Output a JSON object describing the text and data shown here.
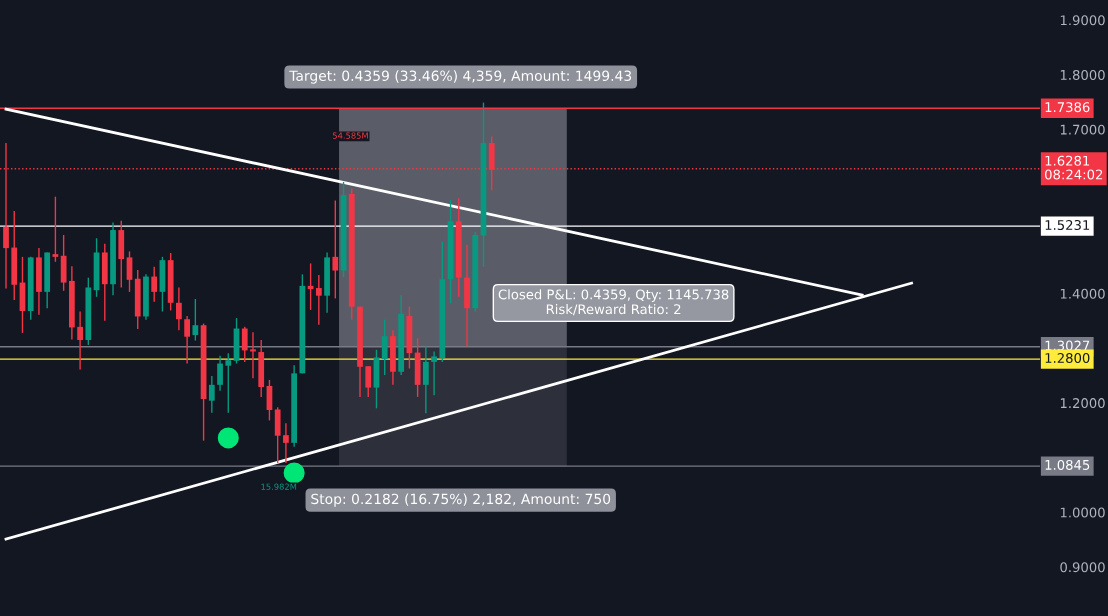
{
  "chart_data": {
    "type": "candlestick",
    "categories": [
      null,
      null,
      null,
      null,
      null,
      null,
      null,
      null,
      null,
      null,
      null,
      null,
      null,
      null,
      null,
      null,
      null,
      null,
      null,
      null,
      null,
      null,
      null,
      null,
      null,
      null,
      null,
      null,
      null,
      null,
      null,
      null,
      null,
      null,
      null,
      null,
      null,
      null,
      null,
      null,
      null,
      null,
      null,
      null,
      null,
      null,
      null,
      null,
      null,
      null,
      null,
      null,
      null,
      null,
      null,
      null,
      null,
      null,
      null,
      null,
      null,
      null,
      null,
      null,
      null,
      null,
      null,
      null,
      null,
      null,
      null,
      null,
      null,
      null,
      null,
      null,
      null,
      null,
      null,
      null,
      null,
      null,
      null,
      null,
      null,
      null,
      null,
      null,
      null,
      null,
      null,
      null,
      null,
      null,
      null,
      null,
      null,
      null,
      null,
      null,
      null,
      null,
      null,
      null,
      null,
      null,
      null,
      null,
      null,
      null,
      null,
      null,
      null,
      null,
      null,
      null,
      null,
      null,
      null,
      null,
      null,
      null,
      null,
      null,
      null,
      null
    ],
    "ohlc": [
      [
        1.522,
        1.675,
        1.409,
        1.483
      ],
      [
        1.484,
        1.551,
        1.388,
        1.416
      ],
      [
        1.42,
        1.467,
        1.328,
        1.368
      ],
      [
        1.368,
        1.467,
        1.352,
        1.466
      ],
      [
        1.466,
        1.483,
        1.361,
        1.403
      ],
      [
        1.403,
        1.475,
        1.373,
        1.475
      ],
      [
        1.472,
        1.577,
        1.458,
        1.467
      ],
      [
        1.469,
        1.507,
        1.405,
        1.42
      ],
      [
        1.423,
        1.45,
        1.316,
        1.338
      ],
      [
        1.339,
        1.367,
        1.261,
        1.315
      ],
      [
        1.315,
        1.429,
        1.306,
        1.411
      ],
      [
        1.406,
        1.501,
        1.394,
        1.475
      ],
      [
        1.475,
        1.491,
        1.35,
        1.417
      ],
      [
        1.417,
        1.53,
        1.397,
        1.516
      ],
      [
        1.516,
        1.533,
        1.411,
        1.463
      ],
      [
        1.466,
        1.477,
        1.403,
        1.425
      ],
      [
        1.427,
        1.443,
        1.335,
        1.358
      ],
      [
        1.358,
        1.435,
        1.352,
        1.431
      ],
      [
        1.431,
        1.449,
        1.385,
        1.403
      ],
      [
        1.403,
        1.467,
        1.367,
        1.461
      ],
      [
        1.461,
        1.474,
        1.369,
        1.383
      ],
      [
        1.383,
        1.411,
        1.333,
        1.353
      ],
      [
        1.353,
        1.359,
        1.272,
        1.321
      ],
      [
        1.324,
        1.39,
        1.314,
        1.342
      ],
      [
        1.342,
        1.345,
        1.131,
        1.207
      ],
      [
        1.204,
        1.249,
        1.182,
        1.233
      ],
      [
        1.233,
        1.286,
        1.222,
        1.272
      ],
      [
        1.268,
        1.291,
        1.182,
        1.278
      ],
      [
        1.277,
        1.355,
        1.272,
        1.336
      ],
      [
        1.336,
        1.339,
        1.275,
        1.296
      ],
      [
        1.298,
        1.329,
        1.245,
        1.294
      ],
      [
        1.293,
        1.315,
        1.211,
        1.229
      ],
      [
        1.231,
        1.242,
        1.168,
        1.187
      ],
      [
        1.188,
        1.192,
        1.09,
        1.14
      ],
      [
        1.141,
        1.163,
        1.09,
        1.127
      ],
      [
        1.127,
        1.269,
        1.12,
        1.254
      ],
      [
        1.254,
        1.435,
        1.254,
        1.414
      ],
      [
        1.414,
        1.455,
        1.37,
        1.408
      ],
      [
        1.41,
        1.434,
        1.343,
        1.396
      ],
      [
        1.396,
        1.475,
        1.365,
        1.466
      ],
      [
        1.467,
        1.57,
        1.391,
        1.442
      ],
      [
        1.442,
        1.604,
        1.43,
        1.58
      ],
      [
        1.582,
        1.592,
        1.352,
        1.376
      ],
      [
        1.376,
        1.376,
        1.211,
        1.266
      ],
      [
        1.267,
        1.267,
        1.211,
        1.228
      ],
      [
        1.228,
        1.297,
        1.19,
        1.283
      ],
      [
        1.28,
        1.352,
        1.251,
        1.322
      ],
      [
        1.322,
        1.333,
        1.233,
        1.257
      ],
      [
        1.257,
        1.397,
        1.251,
        1.363
      ],
      [
        1.359,
        1.376,
        1.263,
        1.291
      ],
      [
        1.292,
        1.318,
        1.211,
        1.233
      ],
      [
        1.233,
        1.303,
        1.181,
        1.275
      ],
      [
        1.275,
        1.294,
        1.214,
        1.285
      ],
      [
        1.282,
        1.495,
        1.275,
        1.426
      ],
      [
        1.426,
        1.571,
        1.382,
        1.532
      ],
      [
        1.532,
        1.574,
        1.394,
        1.429
      ],
      [
        1.429,
        1.489,
        1.303,
        1.373
      ],
      [
        1.373,
        1.513,
        1.367,
        1.507
      ],
      [
        1.506,
        1.749,
        1.449,
        1.675
      ],
      [
        1.675,
        1.687,
        1.589,
        1.626
      ],
      null,
      null,
      null,
      null,
      null,
      null,
      null,
      null,
      null,
      null,
      null,
      null,
      null,
      null,
      null,
      null,
      null,
      null,
      null,
      null,
      null,
      null,
      null,
      null,
      null,
      null,
      null,
      null,
      null,
      null,
      null,
      null,
      null,
      null,
      null,
      null,
      null,
      null,
      null,
      null,
      null,
      null,
      null,
      null,
      null,
      null,
      null,
      null,
      null,
      null,
      null,
      null,
      null,
      null,
      null,
      null,
      null,
      null,
      null,
      null,
      null,
      null,
      null,
      null,
      null,
      null
    ],
    "series": [
      {
        "type": "line",
        "color": "#ffffff",
        "values": [
          1.737,
          null,
          null,
          null,
          null,
          null,
          null,
          null,
          null,
          null,
          null,
          null,
          null,
          null,
          null,
          null,
          null,
          null,
          null,
          null,
          null,
          null,
          null,
          null,
          null,
          null,
          null,
          null,
          null,
          null,
          null,
          null,
          null,
          null,
          null,
          null,
          null,
          null,
          null,
          null,
          null,
          null,
          null,
          null,
          null,
          null,
          null,
          null,
          null,
          null,
          null,
          null,
          null,
          null,
          null,
          null,
          null,
          null,
          null,
          null,
          null,
          null,
          null,
          null,
          null,
          null,
          null,
          null,
          null,
          null,
          null,
          null,
          null,
          null,
          null,
          null,
          null,
          null,
          null,
          null,
          null,
          null,
          null,
          null,
          null,
          null,
          null,
          null,
          null,
          null,
          null,
          null,
          null,
          null,
          null,
          null,
          null,
          null,
          null,
          null,
          null,
          null,
          null,
          null,
          1.397,
          null,
          null,
          null,
          null,
          null,
          null,
          null,
          null,
          null,
          null,
          null,
          null,
          null,
          null,
          null,
          null,
          null,
          null,
          null,
          null,
          null
        ]
      },
      {
        "type": "line",
        "color": "#ffffff",
        "values": [
          0.951,
          null,
          null,
          null,
          null,
          null,
          null,
          null,
          null,
          null,
          null,
          null,
          null,
          null,
          null,
          null,
          null,
          null,
          null,
          null,
          null,
          null,
          null,
          null,
          null,
          null,
          null,
          null,
          null,
          null,
          null,
          null,
          null,
          null,
          null,
          null,
          null,
          null,
          null,
          null,
          null,
          null,
          null,
          null,
          null,
          null,
          null,
          null,
          null,
          null,
          null,
          null,
          null,
          null,
          null,
          null,
          null,
          null,
          null,
          null,
          null,
          null,
          null,
          null,
          null,
          null,
          null,
          null,
          null,
          null,
          null,
          null,
          null,
          null,
          null,
          null,
          null,
          null,
          null,
          null,
          null,
          null,
          null,
          null,
          null,
          null,
          null,
          null,
          null,
          null,
          null,
          null,
          null,
          null,
          null,
          null,
          null,
          null,
          null,
          null,
          null,
          null,
          null,
          null,
          null,
          null,
          null,
          null,
          null,
          null,
          1.419,
          null,
          null,
          null,
          null,
          null,
          null,
          null,
          null,
          null,
          null,
          null,
          null,
          null,
          null,
          null
        ]
      },
      {
        "type": "scatter",
        "color": "#00e676",
        "values": [
          null,
          null,
          null,
          null,
          null,
          null,
          null,
          null,
          null,
          null,
          null,
          null,
          null,
          null,
          null,
          null,
          null,
          null,
          null,
          null,
          null,
          null,
          null,
          null,
          null,
          null,
          null,
          1.136,
          null,
          null,
          null,
          null,
          null,
          null,
          null,
          1.072,
          null,
          null,
          null,
          null,
          null,
          null,
          null,
          null,
          null,
          null,
          null,
          null,
          null,
          null,
          null,
          null,
          null,
          null,
          null,
          null,
          null,
          null,
          null,
          null,
          null,
          null,
          null,
          null,
          null,
          null,
          null,
          null,
          null,
          null,
          null,
          null,
          null,
          null,
          null,
          null,
          null,
          null,
          null,
          null,
          null,
          null,
          null,
          null,
          null,
          null,
          null,
          null,
          null,
          null,
          null,
          null,
          null,
          null,
          null,
          null,
          null,
          null,
          null,
          null,
          null,
          null,
          null,
          null,
          null,
          null,
          null,
          null,
          null,
          null,
          null,
          null,
          null,
          null,
          null,
          null,
          null,
          null,
          null,
          null,
          null,
          null,
          null,
          null,
          null,
          null
        ]
      }
    ],
    "ylim": [
      0.8104,
      1.9366
    ],
    "yticks": [
      {
        "value": 0.9,
        "label": "0.9000"
      },
      {
        "value": 1.0,
        "label": "1.0000"
      },
      {
        "value": 1.2,
        "label": "1.2000"
      },
      {
        "value": 1.4,
        "label": "1.4000"
      },
      {
        "value": 1.7,
        "label": "1.7000"
      },
      {
        "value": 1.8,
        "label": "1.8000"
      },
      {
        "value": 1.9,
        "label": "1.9000"
      }
    ],
    "tick_labels": "y",
    "ref_lines": [
      {
        "axis": "y",
        "value": 1.7386,
        "label": "1.7386",
        "color": "#f23645",
        "line_style": "solid"
      },
      {
        "axis": "y",
        "value": 1.6281,
        "label": "1.6281\n08:24:02",
        "color": "#f23645",
        "line_style": "dotted"
      },
      {
        "axis": "y",
        "value": 1.5231,
        "label": "1.5231",
        "color": "#ffffff",
        "line_style": "solid"
      },
      {
        "axis": "y",
        "value": 1.3027,
        "label": "1.3027",
        "color": "#787b86",
        "line_style": "solid"
      },
      {
        "axis": "y",
        "value": 1.28,
        "label": "1.2800",
        "color": "#ffeb3b",
        "line_style": "solid"
      },
      {
        "axis": "y",
        "value": 1.0845,
        "label": "1.0845",
        "color": "#787b86",
        "line_style": "solid"
      }
    ],
    "bands": [
      {
        "axis": "y",
        "from": 1.3027,
        "to": 1.7386,
        "color": "#9598a1"
      },
      {
        "axis": "y",
        "from": 1.0845,
        "to": 1.3027,
        "color": "#434651"
      }
    ],
    "annotations": [
      "Target: 0.4359 (33.46%) 4,359, Amount: 1499.43",
      "Stop: 0.2182 (16.75%) 2,182, Amount: 750",
      "Closed P&L: 0.4359, Qty: 1145.738\nRisk/Reward Ratio: 2",
      "54.585M",
      "15.982M"
    ]
  }
}
